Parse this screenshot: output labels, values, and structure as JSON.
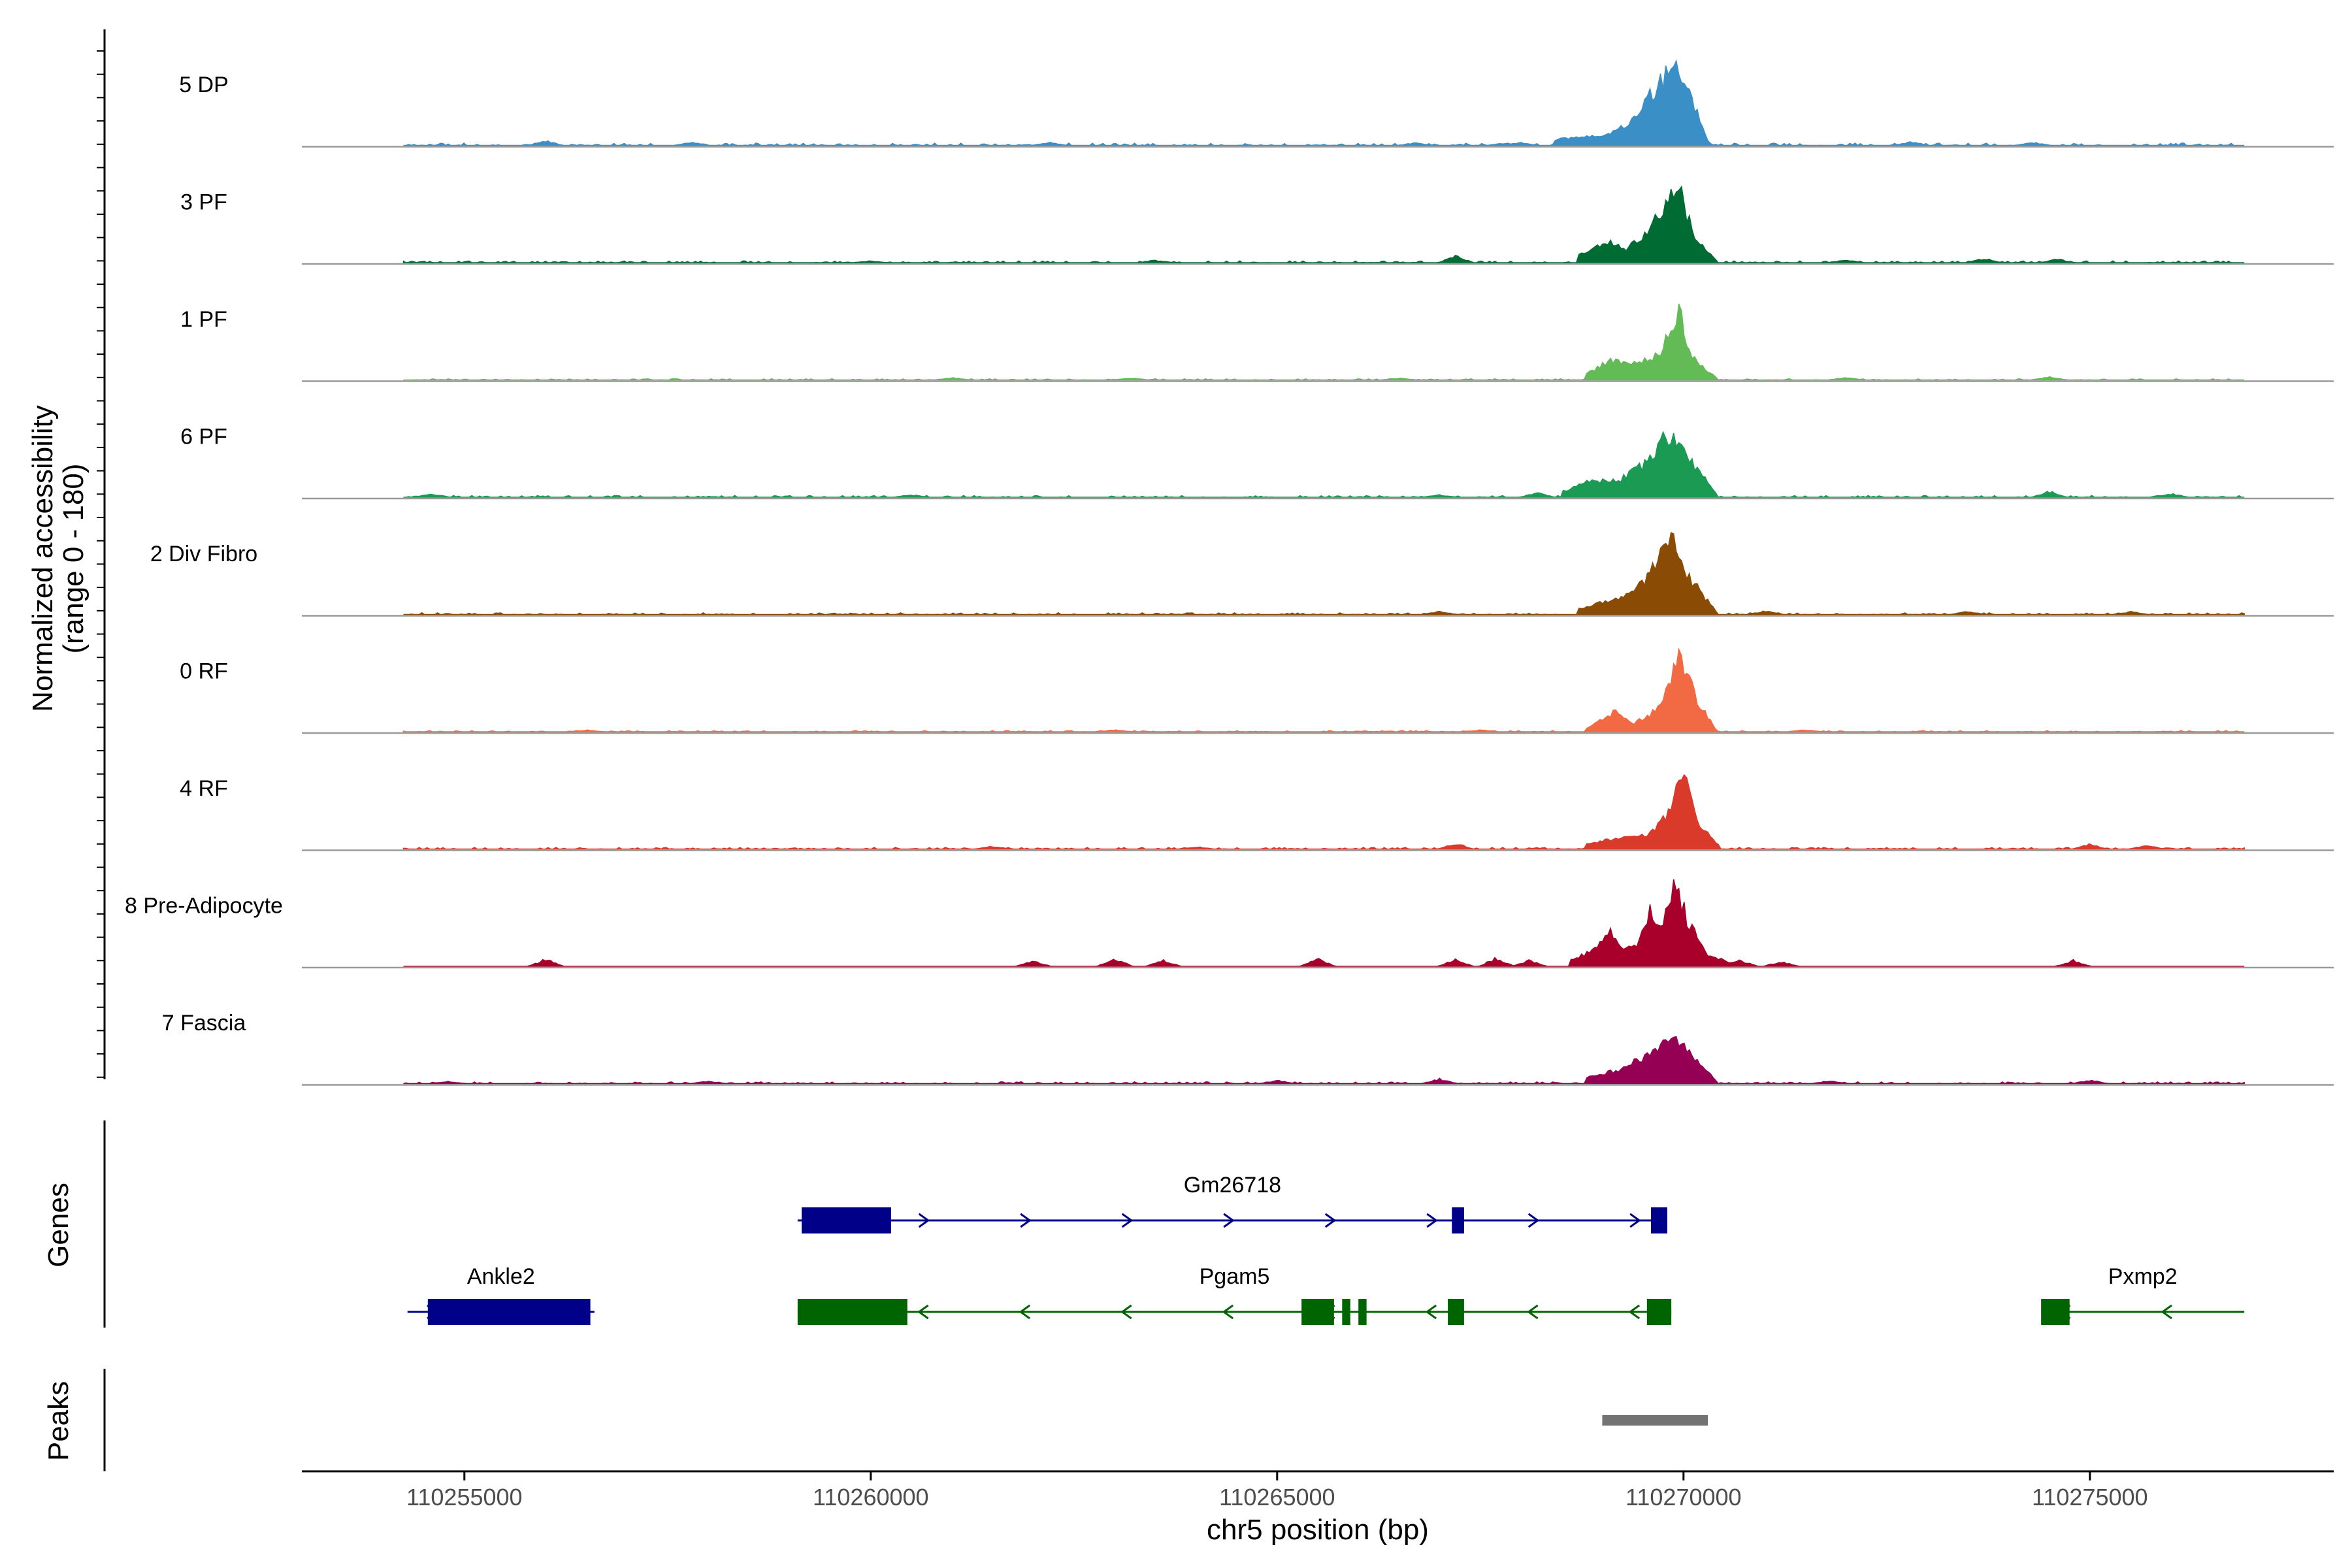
{
  "chart_data": {
    "type": "area",
    "ylabel": "Normalized accessibility\n(range 0 - 180)",
    "xlabel": "chr5 position (bp)",
    "xlim": [
      110253000,
      110278000
    ],
    "ylim": [
      0,
      180
    ],
    "xticks": [
      110255000,
      110260000,
      110265000,
      110270000,
      110275000
    ],
    "xtick_labels": [
      "110255000",
      "110260000",
      "110265000",
      "110270000",
      "110275000"
    ],
    "data_range": [
      110254250,
      110276900
    ],
    "tracks": [
      {
        "name": "5 DP",
        "color": "#3a8fc6",
        "peak_x": 110269900,
        "peak_y": 150,
        "baseline_noise": 4,
        "shape": [
          [
            110268400,
            10
          ],
          [
            110269100,
            20
          ],
          [
            110269400,
            45
          ],
          [
            110269700,
            110
          ],
          [
            110269900,
            150
          ],
          [
            110270100,
            80
          ],
          [
            110270300,
            8
          ]
        ],
        "small": [
          [
            110256000,
            8
          ],
          [
            110257800,
            5
          ],
          [
            110262200,
            5
          ],
          [
            110266700,
            4
          ],
          [
            110267800,
            4
          ],
          [
            110268000,
            5
          ],
          [
            110272800,
            6
          ],
          [
            110274300,
            5
          ]
        ]
      },
      {
        "name": "3 PF",
        "color": "#006b33",
        "peak_x": 110269950,
        "peak_y": 125,
        "baseline_noise": 3,
        "shape": [
          [
            110268700,
            15
          ],
          [
            110269100,
            35
          ],
          [
            110269300,
            25
          ],
          [
            110269600,
            60
          ],
          [
            110269750,
            100
          ],
          [
            110269950,
            125
          ],
          [
            110270150,
            40
          ],
          [
            110270400,
            5
          ]
        ],
        "small": [
          [
            110267200,
            12
          ],
          [
            110263500,
            4
          ],
          [
            110260000,
            3
          ],
          [
            110272000,
            5
          ],
          [
            110273700,
            7
          ],
          [
            110274600,
            6
          ]
        ]
      },
      {
        "name": "1 PF",
        "color": "#62bb55",
        "peak_x": 110269950,
        "peak_y": 120,
        "baseline_noise": 2,
        "shape": [
          [
            110268800,
            10
          ],
          [
            110269100,
            35
          ],
          [
            110269400,
            30
          ],
          [
            110269700,
            45
          ],
          [
            110269950,
            120
          ],
          [
            110270100,
            40
          ],
          [
            110270400,
            4
          ]
        ],
        "small": [
          [
            110261000,
            4
          ],
          [
            110263200,
            3
          ],
          [
            110266500,
            3
          ],
          [
            110272000,
            4
          ],
          [
            110274500,
            5
          ]
        ]
      },
      {
        "name": "6 PF",
        "color": "#1a9a52",
        "peak_x": 110269800,
        "peak_y": 110,
        "baseline_noise": 3,
        "shape": [
          [
            110268500,
            10
          ],
          [
            110268900,
            30
          ],
          [
            110269200,
            30
          ],
          [
            110269500,
            55
          ],
          [
            110269800,
            110
          ],
          [
            110270050,
            70
          ],
          [
            110270400,
            6
          ]
        ],
        "small": [
          [
            110254600,
            6
          ],
          [
            110260500,
            4
          ],
          [
            110267000,
            4
          ],
          [
            110268200,
            8
          ],
          [
            110274500,
            10
          ],
          [
            110276000,
            6
          ]
        ]
      },
      {
        "name": "2 Div Fibro",
        "color": "#8a4b05",
        "peak_x": 110269850,
        "peak_y": 130,
        "baseline_noise": 3,
        "shape": [
          [
            110268700,
            10
          ],
          [
            110269100,
            25
          ],
          [
            110269400,
            40
          ],
          [
            110269650,
            85
          ],
          [
            110269850,
            130
          ],
          [
            110270100,
            60
          ],
          [
            110270400,
            5
          ]
        ],
        "small": [
          [
            110267000,
            5
          ],
          [
            110271000,
            6
          ],
          [
            110273500,
            5
          ],
          [
            110275500,
            5
          ]
        ]
      },
      {
        "name": "0 RF",
        "color": "#f26a43",
        "peak_x": 110269950,
        "peak_y": 145,
        "baseline_noise": 2,
        "shape": [
          [
            110268800,
            5
          ],
          [
            110269150,
            35
          ],
          [
            110269400,
            15
          ],
          [
            110269700,
            40
          ],
          [
            110269950,
            145
          ],
          [
            110270150,
            60
          ],
          [
            110270400,
            3
          ]
        ],
        "small": [
          [
            110256500,
            3
          ],
          [
            110263000,
            3
          ],
          [
            110267500,
            3
          ],
          [
            110271500,
            3
          ]
        ]
      },
      {
        "name": "4 RF",
        "color": "#da3a2a",
        "peak_x": 110270000,
        "peak_y": 125,
        "baseline_noise": 3,
        "shape": [
          [
            110268800,
            8
          ],
          [
            110269200,
            20
          ],
          [
            110269550,
            25
          ],
          [
            110269750,
            50
          ],
          [
            110270000,
            125
          ],
          [
            110270200,
            40
          ],
          [
            110270450,
            4
          ]
        ],
        "small": [
          [
            110267200,
            10
          ],
          [
            110264000,
            4
          ],
          [
            110261500,
            5
          ],
          [
            110275000,
            8
          ],
          [
            110275700,
            6
          ]
        ]
      },
      {
        "name": "8 Pre-Adipocyte",
        "color": "#a8002b",
        "peak_x": 110269900,
        "peak_y": 150,
        "baseline_noise": 0,
        "shape": [
          [
            110268600,
            10
          ],
          [
            110268850,
            25
          ],
          [
            110269100,
            60
          ],
          [
            110269250,
            30
          ],
          [
            110269450,
            40
          ],
          [
            110269600,
            100
          ],
          [
            110269750,
            70
          ],
          [
            110269900,
            150
          ],
          [
            110270050,
            80
          ],
          [
            110270300,
            20
          ],
          [
            110270600,
            5
          ]
        ],
        "small": [
          [
            110256000,
            12
          ],
          [
            110262000,
            10
          ],
          [
            110263000,
            14
          ],
          [
            110263600,
            10
          ],
          [
            110265500,
            14
          ],
          [
            110267200,
            12
          ],
          [
            110267700,
            14
          ],
          [
            110268100,
            10
          ],
          [
            110270700,
            10
          ],
          [
            110271200,
            8
          ],
          [
            110274800,
            10
          ]
        ]
      },
      {
        "name": "7 Fascia",
        "color": "#950054",
        "peak_x": 110269850,
        "peak_y": 90,
        "baseline_noise": 3,
        "shape": [
          [
            110268800,
            10
          ],
          [
            110269200,
            25
          ],
          [
            110269500,
            45
          ],
          [
            110269700,
            70
          ],
          [
            110269850,
            90
          ],
          [
            110270050,
            60
          ],
          [
            110270400,
            5
          ]
        ],
        "small": [
          [
            110254800,
            4
          ],
          [
            110258000,
            4
          ],
          [
            110265000,
            5
          ],
          [
            110267000,
            8
          ],
          [
            110271800,
            5
          ],
          [
            110275000,
            6
          ]
        ]
      }
    ],
    "genes": [
      {
        "name": "Gm26718",
        "strand": "+",
        "row": 1,
        "color": "#000088",
        "start": 110259100,
        "end": 110269800,
        "exons": [
          [
            110259150,
            110260250
          ],
          [
            110267150,
            110267300
          ],
          [
            110269600,
            110269800
          ]
        ]
      },
      {
        "name": "Ankle2",
        "strand": "+",
        "row": 2,
        "color": "#000088",
        "start": 110254300,
        "end": 110256600,
        "exons": [
          [
            110254550,
            110256550
          ]
        ]
      },
      {
        "name": "Pgam5",
        "strand": "-",
        "row": 2,
        "color": "#006400",
        "start": 110259100,
        "end": 110269850,
        "exons": [
          [
            110259100,
            110260450
          ],
          [
            110265300,
            110265700
          ],
          [
            110265800,
            110265900
          ],
          [
            110266000,
            110266100
          ],
          [
            110267100,
            110267300
          ],
          [
            110269550,
            110269850
          ]
        ]
      },
      {
        "name": "Pxmp2",
        "strand": "-",
        "row": 2,
        "color": "#006400",
        "start": 110274400,
        "end": 110276900,
        "exons": [
          [
            110274400,
            110274750
          ]
        ]
      }
    ],
    "peaks": [
      {
        "start": 110269000,
        "end": 110270300,
        "color": "#737373"
      }
    ],
    "panel_labels": {
      "genes": "Genes",
      "peaks": "Peaks"
    }
  }
}
